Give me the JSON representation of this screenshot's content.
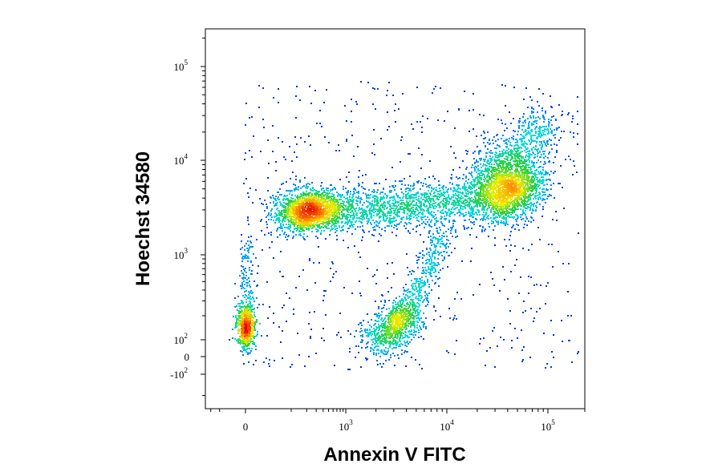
{
  "chart_data": {
    "type": "scatter",
    "title": "",
    "xlabel": "Annexin V FITC",
    "ylabel": "Hoechst 34580",
    "x_scale": "biexponential",
    "y_scale": "biexponential",
    "xlim": [
      -300,
      200000
    ],
    "ylim": [
      -300,
      250000
    ],
    "x_ticks": [
      {
        "base": "0",
        "exp": "",
        "value": 0
      },
      {
        "base": "10",
        "exp": "3",
        "value": 1000
      },
      {
        "base": "10",
        "exp": "4",
        "value": 10000
      },
      {
        "base": "10",
        "exp": "5",
        "value": 100000
      }
    ],
    "y_ticks": [
      {
        "base": "-10",
        "exp": "2",
        "value": -100
      },
      {
        "base": "0",
        "exp": "",
        "value": 0
      },
      {
        "base": "10",
        "exp": "2",
        "value": 100
      },
      {
        "base": "10",
        "exp": "3",
        "value": 1000
      },
      {
        "base": "10",
        "exp": "4",
        "value": 10000
      },
      {
        "base": "10",
        "exp": "5",
        "value": 100000
      }
    ],
    "color_scale": "density (blue → cyan → green → yellow → red)",
    "grid": false,
    "legend": "none",
    "populations": [
      {
        "label": "",
        "x_center": 0,
        "y_center": 150,
        "relative_density": "medium"
      },
      {
        "label": "",
        "x_center": 200,
        "y_center": 3000,
        "relative_density": "high"
      },
      {
        "label": "",
        "x_center": 3000,
        "y_center": 150,
        "relative_density": "medium"
      },
      {
        "label": "",
        "x_center": 40000,
        "y_center": 5000,
        "relative_density": "high"
      }
    ]
  }
}
